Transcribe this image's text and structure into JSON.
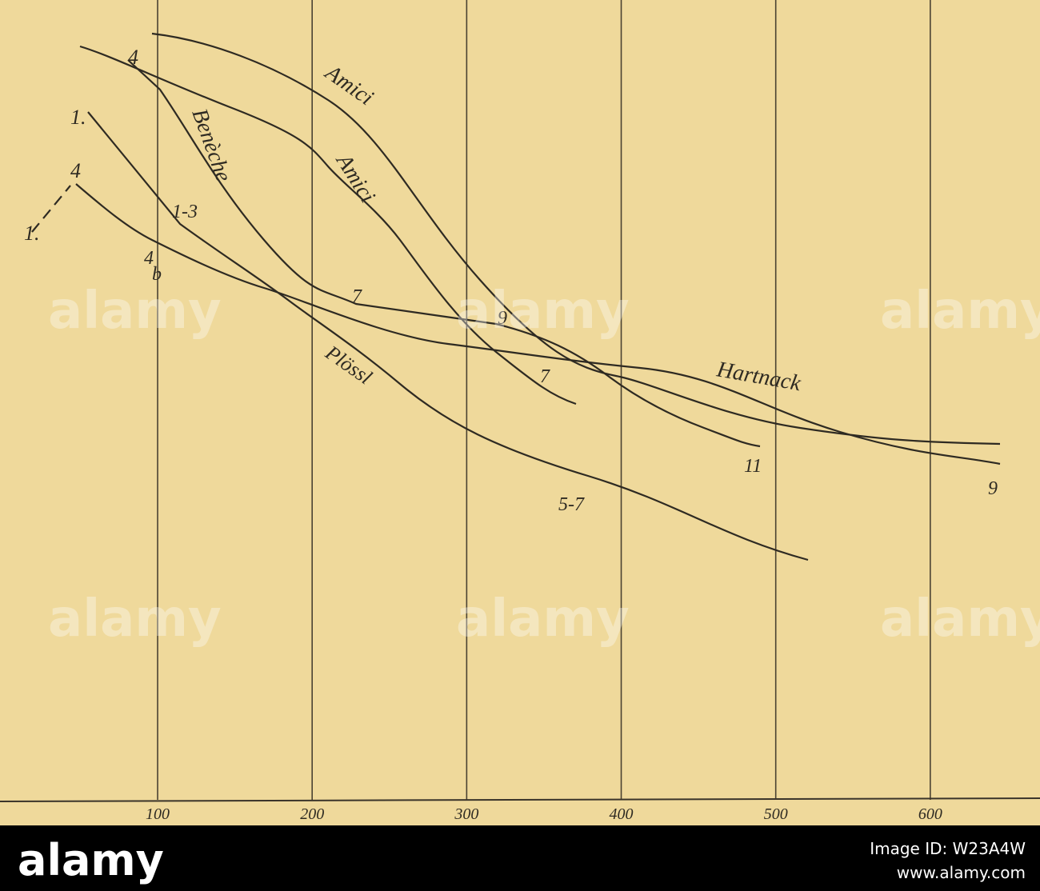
{
  "figure": {
    "x_axis": {
      "xlim": [
        -2,
        671
      ],
      "ticks": [
        100,
        200,
        300,
        400,
        500,
        600
      ]
    },
    "curve_labels": [
      "Amici",
      "Amici",
      "Benèche",
      "Plössl",
      "Hartnack"
    ],
    "point_labels": [
      "4",
      "1.",
      "4",
      "1.",
      "1-3",
      "4",
      "b",
      "7",
      "9",
      "7",
      "11",
      "9",
      "5-7"
    ]
  },
  "watermark": "alamy",
  "footer": {
    "logo": "alamy",
    "image_id": "Image ID: W23A4W",
    "url": "www.alamy.com"
  }
}
